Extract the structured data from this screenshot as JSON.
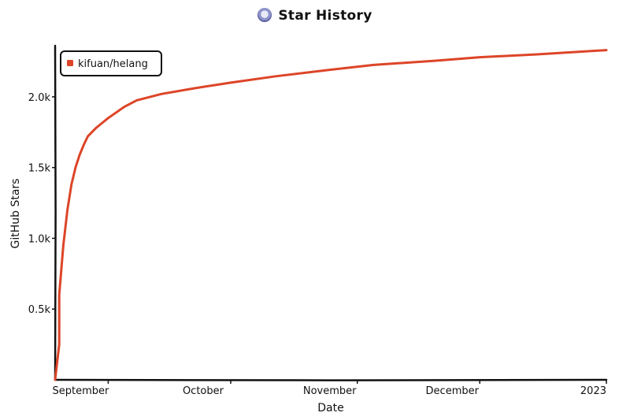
{
  "chart_data": {
    "type": "line",
    "title": "Star History",
    "xlabel": "Date",
    "ylabel": "GitHub Stars",
    "x_tick_labels": [
      "September",
      "October",
      "November",
      "December",
      "2023"
    ],
    "y_tick_labels": [
      "0.5k",
      "1.0k",
      "1.5k",
      "2.0k"
    ],
    "y_ticks": [
      500,
      1000,
      1500,
      2000
    ],
    "ylim": [
      0,
      2350
    ],
    "xlim": [
      "2022-08-19",
      "2023-01-01"
    ],
    "x_ticks": [
      "2022-09-01",
      "2022-10-01",
      "2022-11-01",
      "2022-12-01",
      "2023-01-01"
    ],
    "legend_position": "top-left",
    "series": [
      {
        "name": "kifuan/helang",
        "color": "#dd4528",
        "points": [
          {
            "x": "2022-08-19",
            "y": 0
          },
          {
            "x": "2022-08-20",
            "y": 250
          },
          {
            "x": "2022-08-20",
            "y": 600
          },
          {
            "x": "2022-08-21",
            "y": 950
          },
          {
            "x": "2022-08-22",
            "y": 1200
          },
          {
            "x": "2022-08-23",
            "y": 1380
          },
          {
            "x": "2022-08-24",
            "y": 1500
          },
          {
            "x": "2022-08-25",
            "y": 1590
          },
          {
            "x": "2022-08-26",
            "y": 1660
          },
          {
            "x": "2022-08-27",
            "y": 1720
          },
          {
            "x": "2022-08-29",
            "y": 1780
          },
          {
            "x": "2022-09-01",
            "y": 1850
          },
          {
            "x": "2022-09-05",
            "y": 1930
          },
          {
            "x": "2022-09-08",
            "y": 1975
          },
          {
            "x": "2022-09-14",
            "y": 2020
          },
          {
            "x": "2022-09-22",
            "y": 2060
          },
          {
            "x": "2022-10-01",
            "y": 2100
          },
          {
            "x": "2022-10-12",
            "y": 2145
          },
          {
            "x": "2022-10-25",
            "y": 2190
          },
          {
            "x": "2022-11-05",
            "y": 2225
          },
          {
            "x": "2022-11-20",
            "y": 2255
          },
          {
            "x": "2022-12-01",
            "y": 2280
          },
          {
            "x": "2022-12-15",
            "y": 2300
          },
          {
            "x": "2023-01-01",
            "y": 2330
          }
        ]
      }
    ]
  }
}
